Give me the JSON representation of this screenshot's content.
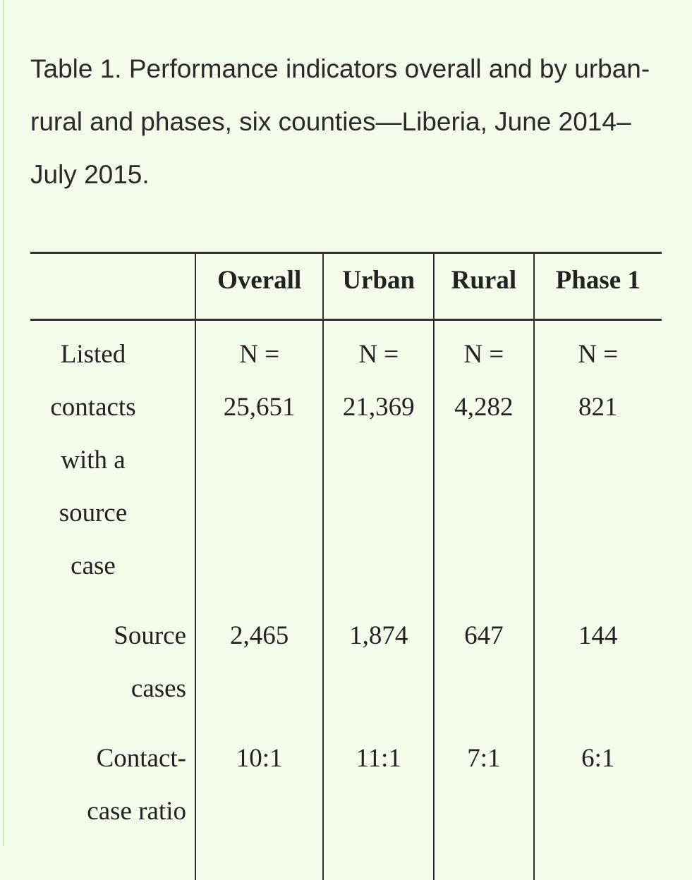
{
  "title": "Table 1. Performance indicators overall and by urban-rural and phases, six counties—Liberia, June 2014–July 2015.",
  "table": {
    "columns": [
      "Overall",
      "Urban",
      "Rural",
      "Phase 1"
    ],
    "rows": [
      {
        "label": "Listed contacts with a source case",
        "cells": [
          [
            "N =",
            "25,651"
          ],
          [
            "N =",
            "21,369"
          ],
          [
            "N =",
            "4,282"
          ],
          [
            "N =",
            "821"
          ]
        ]
      },
      {
        "label": "Source cases",
        "cells": [
          "2,465",
          "1,874",
          "647",
          "144"
        ]
      },
      {
        "label": "Contact-case ratio",
        "cells": [
          "10:1",
          "11:1",
          "7:1",
          "6:1"
        ]
      }
    ]
  }
}
